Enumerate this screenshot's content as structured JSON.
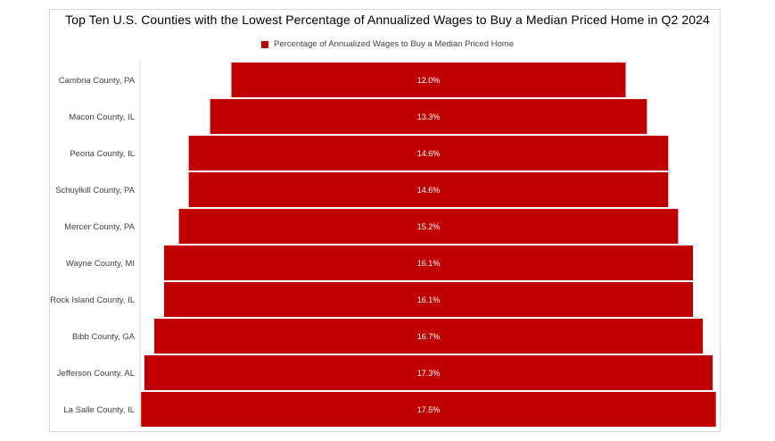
{
  "chart_data": {
    "type": "bar",
    "orientation": "horizontal-centered",
    "title": "Top Ten U.S. Counties with the Lowest Percentage of Annualized Wages to Buy a Median Priced Home in Q2 2024",
    "legend_position": "top",
    "grid": false,
    "categories": [
      "Cambria County, PA",
      "Macon County, IL",
      "Peoria County, IL",
      "Schuylkill County, PA",
      "Mercer County, PA",
      "Wayne County, MI",
      "Rock Island County, IL",
      "Bibb County, GA",
      "Jefferson County, AL",
      "La Salle County, IL"
    ],
    "series": [
      {
        "name": "Percentage of Annualized Wages to Buy a Median Priced Home",
        "color": "#c00000",
        "values": [
          12.0,
          13.3,
          14.6,
          14.6,
          15.2,
          16.1,
          16.1,
          16.7,
          17.3,
          17.5
        ],
        "labels": [
          "12.0%",
          "13.3%",
          "14.6%",
          "14.6%",
          "15.2%",
          "16.1%",
          "16.1%",
          "16.7%",
          "17.3%",
          "17.5%"
        ]
      }
    ]
  }
}
